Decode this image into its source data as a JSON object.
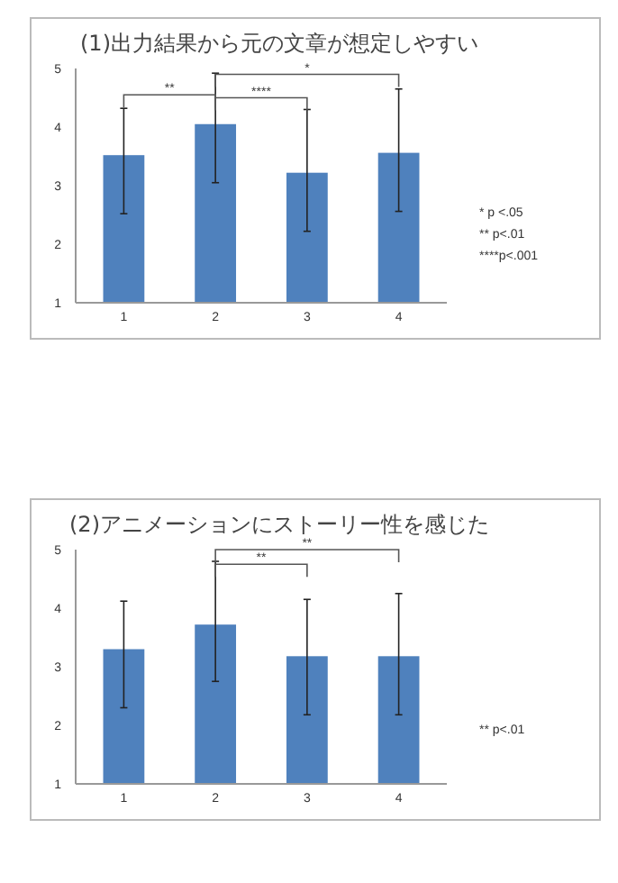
{
  "chart_data": [
    {
      "type": "bar",
      "title": "(1)出力結果から元の文章が想定しやすい",
      "categories": [
        "1",
        "2",
        "3",
        "4"
      ],
      "values": [
        3.52,
        4.05,
        3.22,
        3.56
      ],
      "color": "#4f81bd",
      "errors": [
        [
          2.52,
          4.32
        ],
        [
          3.05,
          4.92
        ],
        [
          2.22,
          4.3
        ],
        [
          2.56,
          4.65
        ]
      ],
      "ylim": [
        1,
        5
      ],
      "yticks": [
        1,
        2,
        3,
        4,
        5
      ],
      "grid": false,
      "annotations": [
        "**",
        "****",
        "*",
        "* p <.05",
        "** p<.01",
        "****p<.001"
      ]
    },
    {
      "type": "bar",
      "title": "(2)アニメーションにストーリー性を感じた",
      "categories": [
        "1",
        "2",
        "3",
        "4"
      ],
      "values": [
        3.3,
        3.72,
        3.18,
        3.18
      ],
      "color": "#4f81bd",
      "errors": [
        [
          2.3,
          4.12
        ],
        [
          2.75,
          4.8
        ],
        [
          2.18,
          4.15
        ],
        [
          2.18,
          4.25
        ]
      ],
      "ylim": [
        1,
        5
      ],
      "yticks": [
        1,
        2,
        3,
        4,
        5
      ],
      "grid": false,
      "annotations": [
        "**",
        "**",
        "** p<.01"
      ]
    }
  ]
}
